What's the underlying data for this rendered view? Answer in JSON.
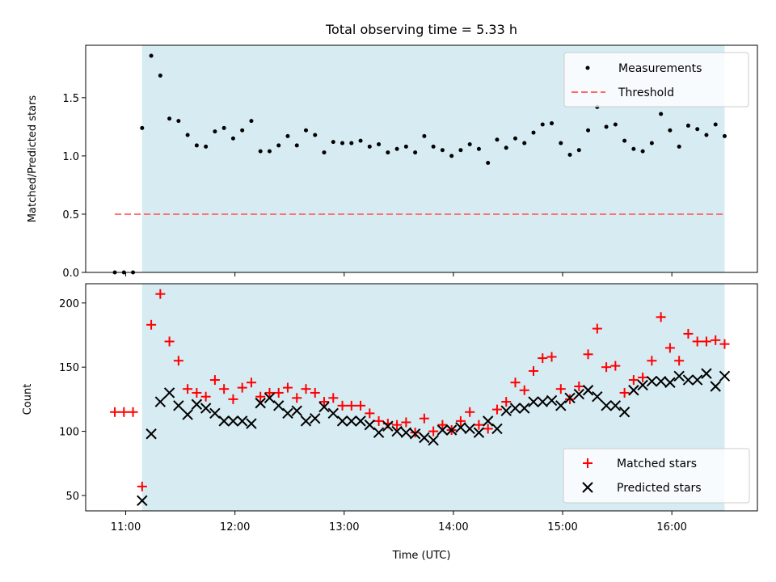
{
  "figure": {
    "title": "Total observing time = 5.33 h"
  },
  "colors": {
    "shade": "#add8e6",
    "threshold": "#ff6666",
    "measurement": "#000000",
    "matched": "#ff0000",
    "predicted": "#000000"
  },
  "chart_data": [
    {
      "type": "scatter",
      "title": "Total observing time = 5.33 h",
      "xlabel": "",
      "ylabel": "Matched/Predicted stars",
      "xlim": [
        "10:38",
        "16:47"
      ],
      "ylim": [
        0,
        1.95
      ],
      "yticks": [
        0.0,
        0.5,
        1.0,
        1.5
      ],
      "ytick_labels": [
        "0.0",
        "0.5",
        "1.0",
        "1.5"
      ],
      "shaded_span": [
        "11:09",
        "16:29"
      ],
      "legend": {
        "placement": "top-right",
        "entries": [
          "Measurements",
          "Threshold"
        ]
      },
      "threshold": {
        "name": "Threshold",
        "value": 0.5,
        "x": [
          "10:54",
          "16:29"
        ]
      },
      "series": [
        {
          "name": "Measurements",
          "x": [
            "10:54",
            "10:59",
            "11:04",
            "11:09",
            "11:14",
            "11:19",
            "11:24",
            "11:29",
            "11:34",
            "11:39",
            "11:44",
            "11:49",
            "11:54",
            "11:59",
            "12:04",
            "12:09",
            "12:14",
            "12:19",
            "12:24",
            "12:29",
            "12:34",
            "12:39",
            "12:44",
            "12:49",
            "12:54",
            "12:59",
            "13:04",
            "13:09",
            "13:14",
            "13:19",
            "13:24",
            "13:29",
            "13:34",
            "13:39",
            "13:44",
            "13:49",
            "13:54",
            "13:59",
            "14:04",
            "14:09",
            "14:14",
            "14:19",
            "14:24",
            "14:29",
            "14:34",
            "14:39",
            "14:44",
            "14:49",
            "14:54",
            "14:59",
            "15:04",
            "15:09",
            "15:14",
            "15:19",
            "15:24",
            "15:29",
            "15:34",
            "15:39",
            "15:44",
            "15:49",
            "15:54",
            "15:59",
            "16:04",
            "16:09",
            "16:14",
            "16:19",
            "16:24",
            "16:29"
          ],
          "y": [
            0.0,
            0.0,
            0.0,
            1.24,
            1.86,
            1.69,
            1.32,
            1.3,
            1.18,
            1.09,
            1.08,
            1.21,
            1.24,
            1.15,
            1.22,
            1.3,
            1.04,
            1.04,
            1.09,
            1.17,
            1.09,
            1.22,
            1.18,
            1.03,
            1.12,
            1.11,
            1.11,
            1.13,
            1.08,
            1.1,
            1.03,
            1.06,
            1.08,
            1.03,
            1.17,
            1.08,
            1.05,
            1.0,
            1.05,
            1.1,
            1.06,
            0.94,
            1.14,
            1.07,
            1.15,
            1.11,
            1.2,
            1.27,
            1.28,
            1.11,
            1.01,
            1.05,
            1.22,
            1.42,
            1.25,
            1.27,
            1.13,
            1.06,
            1.04,
            1.11,
            1.36,
            1.22,
            1.08,
            1.26,
            1.23,
            1.18,
            1.27,
            1.17
          ]
        }
      ]
    },
    {
      "type": "scatter",
      "xlabel": "Time (UTC)",
      "ylabel": "Count",
      "xlim": [
        "10:38",
        "16:47"
      ],
      "ylim": [
        38,
        215
      ],
      "yticks": [
        50,
        100,
        150,
        200
      ],
      "xticks": [
        "11:00",
        "12:00",
        "13:00",
        "14:00",
        "15:00",
        "16:00"
      ],
      "shaded_span": [
        "11:09",
        "16:29"
      ],
      "legend": {
        "placement": "bottom-right",
        "entries": [
          "Matched stars",
          "Predicted stars"
        ]
      },
      "series": [
        {
          "name": "Matched stars",
          "x": [
            "10:54",
            "10:59",
            "11:04",
            "11:09",
            "11:14",
            "11:19",
            "11:24",
            "11:29",
            "11:34",
            "11:39",
            "11:44",
            "11:49",
            "11:54",
            "11:59",
            "12:04",
            "12:09",
            "12:14",
            "12:19",
            "12:24",
            "12:29",
            "12:34",
            "12:39",
            "12:44",
            "12:49",
            "12:54",
            "12:59",
            "13:04",
            "13:09",
            "13:14",
            "13:19",
            "13:24",
            "13:29",
            "13:34",
            "13:39",
            "13:44",
            "13:49",
            "13:54",
            "13:59",
            "14:04",
            "14:09",
            "14:14",
            "14:19",
            "14:24",
            "14:29",
            "14:34",
            "14:39",
            "14:44",
            "14:49",
            "14:54",
            "14:59",
            "15:04",
            "15:09",
            "15:14",
            "15:19",
            "15:24",
            "15:29",
            "15:34",
            "15:39",
            "15:44",
            "15:49",
            "15:54",
            "15:59",
            "16:04",
            "16:09",
            "16:14",
            "16:19",
            "16:24",
            "16:29"
          ],
          "y": [
            115,
            115,
            115,
            57,
            183,
            207,
            170,
            155,
            133,
            130,
            127,
            140,
            133,
            125,
            134,
            138,
            127,
            130,
            130,
            134,
            126,
            133,
            130,
            123,
            126,
            120,
            120,
            120,
            114,
            108,
            106,
            105,
            107,
            99,
            110,
            100,
            105,
            101,
            108,
            115,
            105,
            102,
            117,
            123,
            138,
            132,
            147,
            157,
            158,
            133,
            125,
            135,
            160,
            180,
            150,
            151,
            130,
            140,
            142,
            155,
            189,
            165,
            155,
            176,
            170,
            170,
            171,
            168
          ]
        },
        {
          "name": "Predicted stars",
          "x": [
            "11:09",
            "11:14",
            "11:19",
            "11:24",
            "11:29",
            "11:34",
            "11:39",
            "11:44",
            "11:49",
            "11:54",
            "11:59",
            "12:04",
            "12:09",
            "12:14",
            "12:19",
            "12:24",
            "12:29",
            "12:34",
            "12:39",
            "12:44",
            "12:49",
            "12:54",
            "12:59",
            "13:04",
            "13:09",
            "13:14",
            "13:19",
            "13:24",
            "13:29",
            "13:34",
            "13:39",
            "13:44",
            "13:49",
            "13:54",
            "13:59",
            "14:04",
            "14:09",
            "14:14",
            "14:19",
            "14:24",
            "14:29",
            "14:34",
            "14:39",
            "14:44",
            "14:49",
            "14:54",
            "14:59",
            "15:04",
            "15:09",
            "15:14",
            "15:19",
            "15:24",
            "15:29",
            "15:34",
            "15:39",
            "15:44",
            "15:49",
            "15:54",
            "15:59",
            "16:04",
            "16:09",
            "16:14",
            "16:19",
            "16:24",
            "16:29"
          ],
          "y": [
            46,
            98,
            123,
            130,
            120,
            113,
            121,
            118,
            114,
            108,
            108,
            108,
            106,
            122,
            126,
            120,
            114,
            116,
            108,
            110,
            119,
            114,
            108,
            108,
            108,
            105,
            99,
            104,
            100,
            99,
            98,
            95,
            93,
            101,
            101,
            103,
            102,
            99,
            108,
            102,
            116,
            118,
            118,
            123,
            123,
            124,
            120,
            126,
            129,
            132,
            127,
            120,
            120,
            115,
            132,
            136,
            139,
            139,
            138,
            143,
            140,
            140,
            145,
            135,
            143
          ]
        }
      ]
    }
  ]
}
